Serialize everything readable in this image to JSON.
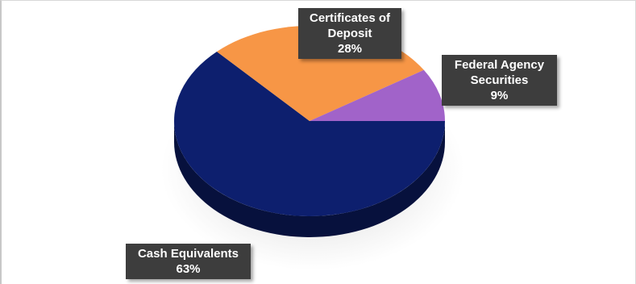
{
  "chart_data": {
    "type": "pie",
    "title": "",
    "slices": [
      {
        "label": "Cash Equivalents",
        "value": 63,
        "pct_label": "63%",
        "color": "#0d1f6e"
      },
      {
        "label": "Certificates of Deposit",
        "label_lines": [
          "Certificates of",
          "Deposit"
        ],
        "value": 28,
        "pct_label": "28%",
        "color": "#f79646"
      },
      {
        "label": "Federal Agency Securities",
        "label_lines": [
          "Federal Agency",
          "Securities"
        ],
        "value": 9,
        "pct_label": "9%",
        "color": "#a163c9"
      }
    ],
    "style": "3d-pie",
    "legend": "none",
    "data_labels": "callouts"
  }
}
